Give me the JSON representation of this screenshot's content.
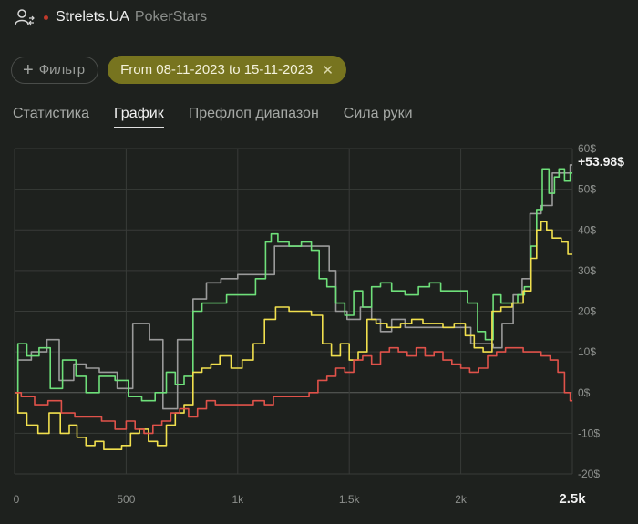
{
  "header": {
    "player_name": "Strelets.UA",
    "site": "PokerStars"
  },
  "filter": {
    "button_label": "Фильтр",
    "date_range": "From 08-11-2023 to 15-11-2023"
  },
  "tabs": [
    {
      "label": "Статистика",
      "active": false
    },
    {
      "label": "График",
      "active": true
    },
    {
      "label": "Префлоп диапазон",
      "active": false
    },
    {
      "label": "Сила руки",
      "active": false
    }
  ],
  "colors": {
    "green": "#6ee07a",
    "yellow": "#f1e04e",
    "red": "#e0524a",
    "grey": "#9a9a9a",
    "accent_chip": "#77741f"
  },
  "chart_data": {
    "type": "line",
    "final_value_label": "+53.98$",
    "xlim": [
      0,
      2500
    ],
    "ylim": [
      -20,
      60
    ],
    "x_ticks": [
      0,
      500,
      1000,
      1500,
      2000,
      2500
    ],
    "x_tick_labels": [
      "0",
      "500",
      "1k",
      "1.5k",
      "2k",
      "2.5k"
    ],
    "y_ticks": [
      60,
      50,
      40,
      30,
      20,
      10,
      0,
      -10,
      -20
    ],
    "y_tick_labels": [
      "60$",
      "50$",
      "40$",
      "30$",
      "20$",
      "10$",
      "0$",
      "-10$",
      "-20$"
    ],
    "grid": true,
    "series": [
      {
        "color": "#9a9a9a",
        "points": [
          [
            0,
            0
          ],
          [
            30,
            8
          ],
          [
            120,
            10
          ],
          [
            170,
            13
          ],
          [
            230,
            3
          ],
          [
            300,
            7
          ],
          [
            340,
            6
          ],
          [
            420,
            5
          ],
          [
            500,
            1
          ],
          [
            560,
            17
          ],
          [
            650,
            13
          ],
          [
            680,
            -4
          ],
          [
            780,
            13
          ],
          [
            820,
            23
          ],
          [
            900,
            27
          ],
          [
            950,
            28
          ],
          [
            1050,
            29
          ],
          [
            1110,
            29
          ],
          [
            1150,
            29
          ],
          [
            1180,
            36
          ],
          [
            1240,
            36
          ],
          [
            1300,
            36
          ],
          [
            1400,
            36
          ],
          [
            1420,
            30
          ],
          [
            1460,
            20
          ],
          [
            1520,
            18
          ],
          [
            1580,
            21
          ],
          [
            1620,
            18
          ],
          [
            1660,
            15
          ],
          [
            1720,
            18
          ],
          [
            1780,
            16
          ],
          [
            1860,
            16
          ],
          [
            1920,
            16
          ],
          [
            2020,
            16
          ],
          [
            2070,
            12
          ],
          [
            2130,
            12
          ],
          [
            2160,
            11
          ],
          [
            2210,
            17
          ],
          [
            2260,
            24
          ],
          [
            2290,
            28
          ],
          [
            2330,
            44
          ],
          [
            2390,
            46
          ],
          [
            2430,
            54
          ],
          [
            2480,
            54
          ],
          [
            2500,
            56
          ]
        ]
      },
      {
        "color": "#6ee07a",
        "points": [
          [
            0,
            0
          ],
          [
            30,
            12
          ],
          [
            80,
            9
          ],
          [
            140,
            11
          ],
          [
            180,
            1
          ],
          [
            250,
            8
          ],
          [
            300,
            4
          ],
          [
            340,
            0
          ],
          [
            420,
            4
          ],
          [
            480,
            3
          ],
          [
            540,
            -1
          ],
          [
            600,
            -2
          ],
          [
            660,
            0
          ],
          [
            700,
            5
          ],
          [
            740,
            2
          ],
          [
            780,
            4
          ],
          [
            820,
            20
          ],
          [
            860,
            22
          ],
          [
            920,
            22
          ],
          [
            980,
            24
          ],
          [
            1050,
            24
          ],
          [
            1110,
            28
          ],
          [
            1140,
            37
          ],
          [
            1160,
            39
          ],
          [
            1200,
            37
          ],
          [
            1260,
            36
          ],
          [
            1310,
            37
          ],
          [
            1350,
            35
          ],
          [
            1380,
            28
          ],
          [
            1420,
            26
          ],
          [
            1460,
            22
          ],
          [
            1500,
            19
          ],
          [
            1540,
            25
          ],
          [
            1580,
            21
          ],
          [
            1620,
            26
          ],
          [
            1660,
            27
          ],
          [
            1720,
            25
          ],
          [
            1780,
            24
          ],
          [
            1840,
            26
          ],
          [
            1880,
            27
          ],
          [
            1940,
            25
          ],
          [
            2000,
            25
          ],
          [
            2060,
            22
          ],
          [
            2090,
            15
          ],
          [
            2130,
            13
          ],
          [
            2160,
            24
          ],
          [
            2200,
            22
          ],
          [
            2240,
            22
          ],
          [
            2270,
            24
          ],
          [
            2300,
            26
          ],
          [
            2330,
            36
          ],
          [
            2350,
            45
          ],
          [
            2380,
            55
          ],
          [
            2410,
            49
          ],
          [
            2430,
            53
          ],
          [
            2450,
            55
          ],
          [
            2480,
            52
          ],
          [
            2500,
            54
          ]
        ]
      },
      {
        "color": "#f1e04e",
        "points": [
          [
            0,
            0
          ],
          [
            30,
            -5
          ],
          [
            80,
            -8
          ],
          [
            130,
            -10
          ],
          [
            180,
            -5
          ],
          [
            230,
            -10
          ],
          [
            260,
            -8
          ],
          [
            300,
            -11
          ],
          [
            340,
            -13
          ],
          [
            380,
            -12
          ],
          [
            420,
            -14
          ],
          [
            460,
            -14
          ],
          [
            500,
            -13
          ],
          [
            540,
            -10
          ],
          [
            580,
            -9
          ],
          [
            620,
            -12
          ],
          [
            660,
            -13
          ],
          [
            700,
            -8
          ],
          [
            740,
            -5
          ],
          [
            780,
            -3
          ],
          [
            820,
            5
          ],
          [
            860,
            6
          ],
          [
            900,
            7
          ],
          [
            940,
            9
          ],
          [
            1000,
            6
          ],
          [
            1040,
            8
          ],
          [
            1100,
            12
          ],
          [
            1140,
            18
          ],
          [
            1200,
            21
          ],
          [
            1260,
            20
          ],
          [
            1300,
            20
          ],
          [
            1360,
            19
          ],
          [
            1400,
            12
          ],
          [
            1440,
            9
          ],
          [
            1480,
            12
          ],
          [
            1520,
            8
          ],
          [
            1560,
            10
          ],
          [
            1600,
            18
          ],
          [
            1640,
            17
          ],
          [
            1700,
            16
          ],
          [
            1760,
            17
          ],
          [
            1800,
            18
          ],
          [
            1860,
            17
          ],
          [
            1900,
            17
          ],
          [
            1940,
            16
          ],
          [
            2000,
            17
          ],
          [
            2040,
            14
          ],
          [
            2080,
            11
          ],
          [
            2120,
            10
          ],
          [
            2160,
            20
          ],
          [
            2200,
            21
          ],
          [
            2260,
            22
          ],
          [
            2300,
            25
          ],
          [
            2330,
            33
          ],
          [
            2350,
            40
          ],
          [
            2370,
            42
          ],
          [
            2400,
            40
          ],
          [
            2420,
            38
          ],
          [
            2440,
            38
          ],
          [
            2460,
            37
          ],
          [
            2500,
            34
          ]
        ]
      },
      {
        "color": "#e0524a",
        "points": [
          [
            0,
            0
          ],
          [
            60,
            -1
          ],
          [
            120,
            -3
          ],
          [
            180,
            -2
          ],
          [
            240,
            -5
          ],
          [
            300,
            -6
          ],
          [
            360,
            -6
          ],
          [
            420,
            -7
          ],
          [
            480,
            -9
          ],
          [
            520,
            -7
          ],
          [
            560,
            -9
          ],
          [
            600,
            -10
          ],
          [
            640,
            -8
          ],
          [
            680,
            -7
          ],
          [
            720,
            -5
          ],
          [
            760,
            -4
          ],
          [
            800,
            -6
          ],
          [
            840,
            -4
          ],
          [
            880,
            -2
          ],
          [
            920,
            -3
          ],
          [
            980,
            -3
          ],
          [
            1040,
            -3
          ],
          [
            1100,
            -2
          ],
          [
            1140,
            -3
          ],
          [
            1180,
            -1
          ],
          [
            1240,
            -1
          ],
          [
            1300,
            -1
          ],
          [
            1340,
            0
          ],
          [
            1380,
            3
          ],
          [
            1420,
            4
          ],
          [
            1460,
            6
          ],
          [
            1500,
            5
          ],
          [
            1540,
            8
          ],
          [
            1580,
            9
          ],
          [
            1620,
            7
          ],
          [
            1660,
            10
          ],
          [
            1700,
            11
          ],
          [
            1740,
            10
          ],
          [
            1780,
            9
          ],
          [
            1820,
            11
          ],
          [
            1860,
            9
          ],
          [
            1900,
            10
          ],
          [
            1940,
            8
          ],
          [
            1980,
            7
          ],
          [
            2020,
            6
          ],
          [
            2060,
            5
          ],
          [
            2100,
            6
          ],
          [
            2140,
            9
          ],
          [
            2180,
            10
          ],
          [
            2220,
            11
          ],
          [
            2260,
            11
          ],
          [
            2300,
            10
          ],
          [
            2340,
            10
          ],
          [
            2380,
            9
          ],
          [
            2420,
            8
          ],
          [
            2450,
            5
          ],
          [
            2480,
            0
          ],
          [
            2500,
            -2
          ]
        ]
      }
    ]
  }
}
